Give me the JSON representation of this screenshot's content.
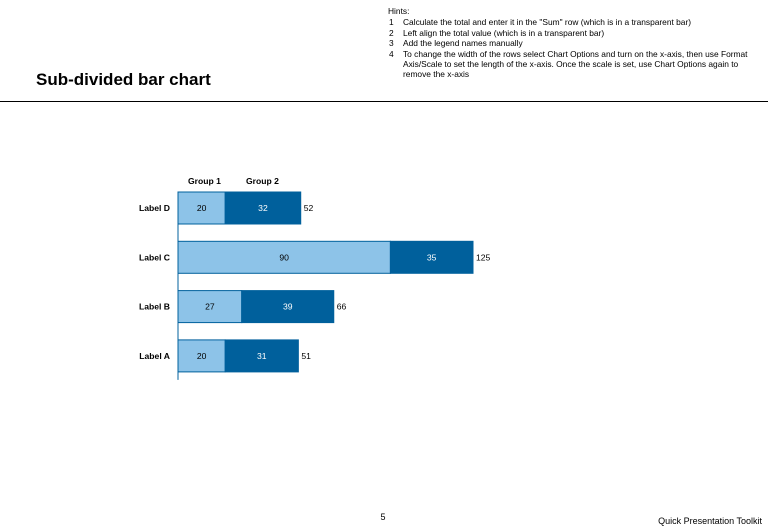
{
  "slide": {
    "title": "Sub-divided bar chart",
    "page_number": "5",
    "footer": "Quick Presentation Toolkit"
  },
  "hints": {
    "heading": "Hints:",
    "items": [
      {
        "num": "1",
        "text": "Calculate the total and enter it in the \"Sum\" row (which is in a transparent bar)"
      },
      {
        "num": "2",
        "text": "Left align the total value (which is in a transparent bar)"
      },
      {
        "num": "3",
        "text": "Add the legend names manually"
      },
      {
        "num": "4",
        "text": "To change the width of the rows select Chart Options and turn on the x-axis, then use Format Axis/Scale to set the length of the x-axis. Once the scale is set, use Chart Options again to remove the x-axis"
      }
    ]
  },
  "chart_data": {
    "type": "bar",
    "orientation": "horizontal",
    "stacked": true,
    "categories": [
      "Label D",
      "Label C",
      "Label B",
      "Label A"
    ],
    "series": [
      {
        "name": "Group 1",
        "values": [
          20,
          90,
          27,
          20
        ],
        "color": "#8dc3e8"
      },
      {
        "name": "Group 2",
        "values": [
          32,
          35,
          39,
          31
        ],
        "color": "#00609c"
      }
    ],
    "totals": [
      52,
      125,
      66,
      51
    ],
    "xlim": [
      0,
      125
    ],
    "grid": false,
    "legend": "top-left",
    "colors": {
      "bar_border": "#00609c",
      "group2_label": "#ffffff",
      "group1_label": "#000000"
    }
  }
}
